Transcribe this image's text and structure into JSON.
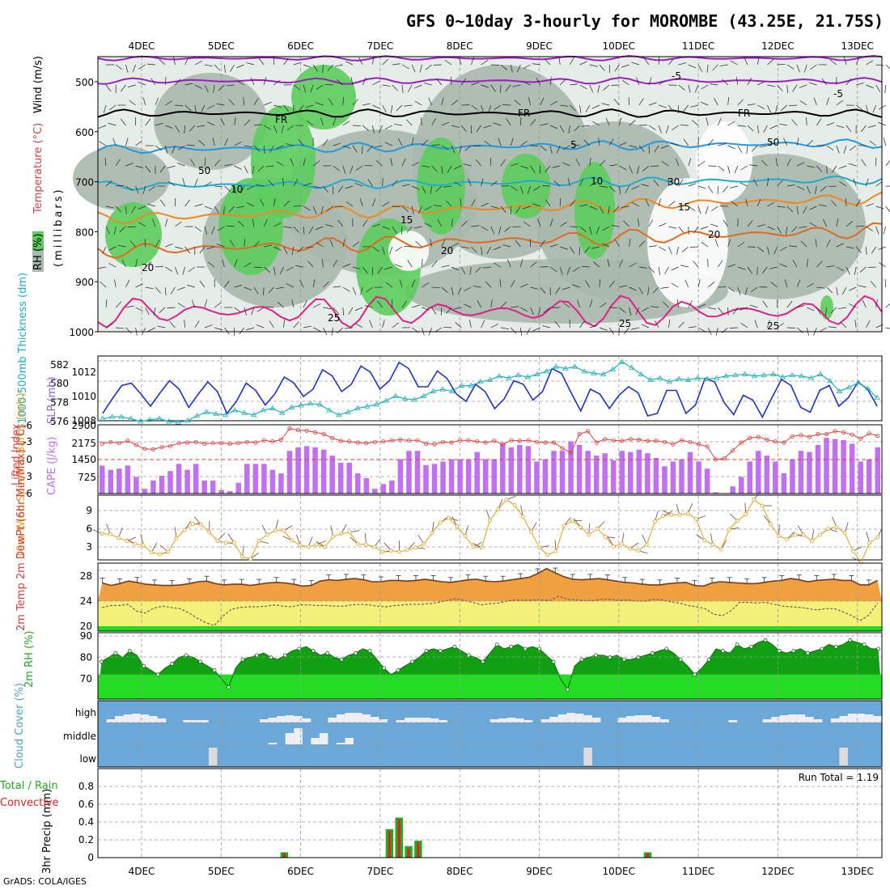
{
  "title": "GFS 0~10day 3-hourly for MOROMBE (43.25E, 21.75S)",
  "credit": "GrADS: COLA/IGES",
  "colors": {
    "rh_light": "#c9d3cc",
    "rh_mid": "#a9b8ad",
    "rh_green": "#5ccd5c",
    "temp_purple": "#9a1fc2",
    "temp_black": "#000000",
    "temp_blue": "#2299dd",
    "temp_cyan": "#22aacc",
    "temp_orange": "#ee8822",
    "temp_red": "#e06a20",
    "temp_magenta": "#dd2288",
    "slp": "#2233bb",
    "thickness": "#22b0b8",
    "cape_bar": "#c070f0",
    "lifted": "#dd4040",
    "wind10": "#e0a020",
    "t2m_fill": "#f0a040",
    "dew_fill": "#f2f27a",
    "rh2m_dark": "#11a011",
    "rh2m_light": "#22dd22",
    "cloud_bg": "#6aa8d8",
    "cloud_fill": "#f0eef5",
    "precip_total": "#22aa22",
    "precip_conv": "#dd2222"
  },
  "chart_data": [
    {
      "type": "heatmap",
      "panel": "upper-air",
      "ylabel_parts": [
        "RH (%)",
        "Temperature (°C)",
        "Wind (m/s)"
      ],
      "ylabel_sub": "(millibars)",
      "x_labels": [
        "4DEC",
        "5DEC",
        "6DEC",
        "7DEC",
        "8DEC",
        "9DEC",
        "10DEC",
        "11DEC",
        "12DEC",
        "13DEC"
      ],
      "y_ticks": [
        500,
        600,
        700,
        800,
        900,
        1000
      ],
      "ylim": [
        1000,
        450
      ],
      "contour_labels": [
        "-5",
        "FR",
        "FR",
        "FR",
        "-5",
        "5",
        "10",
        "10",
        "15",
        "15",
        "20",
        "20",
        "20",
        "25",
        "25",
        "25",
        "50",
        "50",
        "30"
      ]
    },
    {
      "type": "line",
      "panel": "slp-thickness",
      "ylabel_left": "1000-500mb Thickness (dm)",
      "ylabel_right": "SLP (mb)",
      "y_ticks_left": [
        576,
        578,
        580,
        582
      ],
      "y_ticks_right": [
        1008,
        1010,
        1012
      ],
      "series": [
        {
          "name": "SLP",
          "values": [
            1008.6,
            1009.8,
            1010.9,
            1011.1,
            1010.2,
            1009.2,
            1010.3,
            1011.3,
            1010.6,
            1009.1,
            1010.2,
            1011.2,
            1010.4,
            1008.6,
            1009.6,
            1011.1,
            1010.5,
            1009.3,
            1010.2,
            1011.6,
            1011.1,
            1010.0,
            1010.6,
            1012.2,
            1011.7,
            1010.4,
            1011.0,
            1012.5,
            1012.0,
            1010.6,
            1011.3,
            1012.8,
            1012.3,
            1010.8,
            1010.8,
            1012.1,
            1011.5,
            1010.2,
            1009.6,
            1011.0,
            1010.4,
            1009.0,
            1009.8,
            1011.3,
            1011.0,
            1009.7,
            1010.4,
            1012.3,
            1011.9,
            1010.3,
            1008.8,
            1010.6,
            1010.2,
            1009.0,
            1010.1,
            1010.8,
            1010.3,
            1008.4,
            1008.6,
            1010.5,
            1010.5,
            1008.6,
            1009.3,
            1011.5,
            1011.2,
            1009.5,
            1008.5,
            1010.1,
            1009.7,
            1008.3,
            1009.9,
            1011.4,
            1010.9,
            1009.1,
            1008.7,
            1010.5,
            1010.9,
            1009.2,
            1009.9,
            1011.2,
            1010.6,
            1009.2
          ]
        },
        {
          "name": "Thickness",
          "values": [
            576.3,
            576.5,
            576.5,
            576.3,
            576.0,
            576.2,
            576.3,
            576.0,
            575.9,
            576.1,
            576.6,
            577.0,
            576.8,
            576.7,
            577.2,
            576.9,
            576.7,
            577.2,
            577.4,
            576.9,
            577.5,
            577.7,
            577.9,
            577.8,
            577.2,
            576.7,
            577.0,
            577.4,
            577.6,
            577.8,
            578.2,
            578.7,
            578.4,
            578.3,
            578.7,
            579.2,
            579.4,
            579.2,
            579.8,
            579.8,
            580.2,
            580.4,
            580.8,
            580.6,
            580.9,
            580.7,
            581.0,
            581.3,
            581.8,
            581.6,
            581.8,
            581.3,
            581.1,
            581.0,
            581.5,
            582.3,
            581.7,
            581.0,
            580.4,
            580.6,
            580.2,
            580.5,
            580.4,
            580.6,
            580.5,
            580.6,
            580.8,
            580.9,
            581.0,
            580.8,
            580.9,
            581.0,
            580.7,
            580.9,
            580.8,
            580.6,
            581.0,
            580.3,
            579.2,
            579.6,
            580.1,
            579.5,
            578.5
          ]
        }
      ]
    },
    {
      "type": "bar",
      "panel": "cape-lifted",
      "ylabel_left": "Lifted Index",
      "ylabel_right": "CAPE (J/kg)",
      "y_ticks_left": [
        "-6",
        "-3",
        "0",
        "3",
        "6"
      ],
      "y_ticks_right": [
        "2900",
        "2175",
        "1450",
        "725"
      ],
      "series": [
        {
          "name": "CAPE",
          "values": [
            1180,
            1000,
            1050,
            1180,
            700,
            200,
            550,
            750,
            950,
            1250,
            1000,
            1250,
            550,
            550,
            150,
            100,
            450,
            1250,
            1250,
            1250,
            1000,
            850,
            1800,
            1950,
            2000,
            1950,
            1850,
            1600,
            1300,
            1300,
            850,
            650,
            200,
            400,
            550,
            1450,
            1800,
            1800,
            1200,
            1250,
            1350,
            1450,
            1450,
            1450,
            1750,
            1450,
            1450,
            2100,
            1950,
            2050,
            2000,
            1350,
            1450,
            1800,
            1800,
            2200,
            2050,
            1800,
            1600,
            1700,
            1400,
            1800,
            1750,
            1850,
            1700,
            1500,
            1150,
            1350,
            1450,
            1750,
            1350,
            1050,
            50,
            0,
            300,
            700,
            1350,
            1800,
            1600,
            1350,
            850,
            1450,
            1800,
            1750,
            2050,
            2350,
            2300,
            2250,
            2100,
            1350,
            1450,
            1950
          ]
        },
        {
          "name": "Lifted Index",
          "values": [
            -2.8,
            -3.1,
            -2.9,
            -3.3,
            -2.6,
            -1.9,
            -1.8,
            -2.2,
            -2.4,
            -2.9,
            -3.0,
            -3.1,
            -2.8,
            -2.9,
            -2.9,
            -2.8,
            -2.9,
            -3.1,
            -3.0,
            -3.4,
            -3.2,
            -3.5,
            -5.5,
            -5.2,
            -5.1,
            -4.8,
            -4.5,
            -3.8,
            -3.3,
            -3.2,
            -3.0,
            -2.9,
            -3.1,
            -3.2,
            -3.4,
            -3.5,
            -3.4,
            -3.4,
            -2.8,
            -2.7,
            -3.1,
            -3.0,
            -3.4,
            -3.4,
            -3.2,
            -3.0,
            -3.3,
            -2.7,
            -3.4,
            -3.3,
            -3.4,
            -3.1,
            -3.0,
            -3.0,
            -2.0,
            -1.2,
            -4.5,
            -5.0,
            -3.0,
            -3.6,
            -3.4,
            -3.3,
            -3.6,
            -3.5,
            -3.3,
            -3.3,
            -3.1,
            -2.7,
            -3.4,
            -3.1,
            -2.7,
            -2.3,
            0.0,
            -0.2,
            -1.6,
            -3.0,
            -3.8,
            -4.0,
            -3.5,
            -3.2,
            -3.0,
            -4.1,
            -4.3,
            -4.0,
            -4.5,
            -4.5,
            -5.0,
            -4.8,
            -4.4,
            -3.7,
            -4.6,
            -4.2
          ]
        }
      ]
    },
    {
      "type": "line",
      "panel": "wind10m",
      "ylabel": "10m Wind Speed & Barbs (m/s)",
      "y_ticks": [
        3,
        6,
        9
      ],
      "series": [
        {
          "name": "10m Wind",
          "values": [
            5.2,
            5.1,
            4.5,
            4.0,
            3.5,
            3.3,
            2.1,
            1.8,
            2.2,
            4.4,
            5.8,
            6.8,
            6.7,
            5.4,
            4.0,
            3.7,
            3.7,
            1.4,
            1.0,
            4.0,
            5.0,
            5.7,
            5.7,
            4.1,
            3.3,
            3.0,
            3.4,
            3.0,
            4.7,
            5.2,
            5.4,
            3.5,
            3.4,
            3.0,
            2.2,
            2.4,
            2.2,
            2.5,
            2.9,
            3.5,
            5.3,
            7.0,
            7.8,
            6.4,
            4.8,
            3.0,
            2.9,
            7.4,
            9.2,
            10.8,
            9.9,
            8.0,
            5.5,
            2.9,
            1.7,
            2.3,
            6.5,
            7.3,
            6.3,
            5.0,
            6.0,
            4.7,
            3.1,
            3.5,
            2.7,
            2.4,
            3.4,
            7.2,
            8.1,
            8.3,
            8.3,
            8.5,
            7.6,
            4.1,
            3.4,
            2.6,
            5.9,
            7.3,
            8.4,
            10.8,
            9.8,
            6.8,
            4.8,
            4.3,
            5.0,
            5.0,
            4.0,
            5.0,
            6.0,
            6.3,
            5.3,
            2.3,
            0.5,
            3.7,
            4.6
          ]
        }
      ]
    },
    {
      "type": "area",
      "panel": "temp2m",
      "ylabel": "2m Temp 2m DewPt (6hr Min/Max) (°C)",
      "y_ticks": [
        20,
        24,
        28
      ],
      "series": [
        {
          "name": "2m Temp",
          "values": [
            26.9,
            26.5,
            26.8,
            27.2,
            27.0,
            26.7,
            26.6,
            26.5,
            26.5,
            26.6,
            26.8,
            27.1,
            27.2,
            26.8,
            26.6,
            26.7,
            26.7,
            26.5,
            26.7,
            26.9,
            27.0,
            26.9,
            26.7,
            26.4,
            26.5,
            27.2,
            27.4,
            27.3,
            27.5,
            27.6,
            27.4,
            27.1,
            27.1,
            27.3,
            27.3,
            27.2,
            27.3,
            27.5,
            27.3,
            27.1,
            27.0,
            27.2,
            27.4,
            27.5,
            27.2,
            27.1,
            27.2,
            27.4,
            27.6,
            27.8,
            28.4,
            29.2,
            28.5,
            27.9,
            27.5,
            27.4,
            27.5,
            27.6,
            27.4,
            27.2,
            27.0,
            26.9,
            26.7,
            26.6,
            26.6,
            26.8,
            26.9,
            27.0,
            26.5,
            26.4,
            26.9,
            27.1,
            27.0,
            26.9,
            26.8,
            26.8,
            27.0,
            27.2,
            27.3,
            27.6,
            27.4,
            27.1,
            27.3,
            27.4,
            27.5,
            27.3,
            27.3,
            26.6,
            26.6,
            27.3
          ]
        },
        {
          "name": "2m DewPt",
          "values": [
            23.0,
            23.3,
            23.3,
            23.5,
            22.4,
            22.1,
            22.9,
            23.2,
            23.0,
            22.8,
            22.2,
            21.3,
            20.6,
            20.1,
            21.6,
            22.7,
            23.0,
            23.1,
            23.1,
            23.2,
            23.4,
            23.2,
            23.1,
            23.4,
            23.4,
            23.3,
            23.3,
            23.2,
            23.2,
            23.4,
            23.5,
            23.4,
            23.2,
            23.1,
            23.3,
            23.4,
            23.5,
            23.5,
            23.6,
            23.8,
            24.1,
            24.4,
            24.1,
            23.8,
            23.4,
            23.6,
            23.7,
            24.0,
            24.2,
            24.1,
            24.2,
            24.2,
            24.1,
            24.8,
            24.3,
            24.2,
            24.1,
            24.1,
            24.3,
            24.3,
            24.1,
            24.2,
            24.0,
            24.0,
            24.3,
            24.2,
            23.9,
            23.7,
            23.3,
            23.1,
            22.8,
            21.9,
            21.7,
            22.5,
            23.8,
            23.8,
            23.7,
            23.8,
            23.5,
            23.2,
            23.1,
            23.0,
            22.8,
            22.6,
            22.8,
            22.8,
            22.3,
            21.7,
            20.9,
            21.8,
            23.7
          ]
        }
      ]
    },
    {
      "type": "area",
      "panel": "rh2m",
      "ylabel": "2m RH (%)",
      "y_ticks": [
        70,
        80,
        90
      ],
      "series": [
        {
          "name": "2m RH",
          "values": [
            78,
            80,
            82,
            80,
            83,
            81,
            76,
            74,
            72,
            75,
            77,
            80,
            81,
            80,
            78,
            76,
            74,
            70,
            66,
            75,
            79,
            80,
            81,
            82,
            80,
            79,
            81,
            83,
            84,
            85,
            83,
            81,
            82,
            80,
            79,
            81,
            82,
            84,
            83,
            79,
            75,
            72,
            74,
            76,
            78,
            80,
            83,
            84,
            83,
            84,
            85,
            83,
            81,
            80,
            78,
            82,
            86,
            84,
            85,
            86,
            84,
            85,
            84,
            81,
            78,
            70,
            65,
            76,
            79,
            80,
            81,
            81,
            80,
            81,
            79,
            79,
            80,
            81,
            82,
            83,
            84,
            82,
            79,
            76,
            72,
            75,
            79,
            84,
            83,
            82,
            86,
            84,
            85,
            87,
            88,
            86,
            83,
            82,
            83,
            84,
            82,
            83,
            84,
            86,
            85,
            86,
            88,
            87,
            86,
            84,
            84
          ]
        }
      ]
    },
    {
      "type": "bar",
      "panel": "cloud",
      "ylabel": "Cloud Cover (%)",
      "y_ticks": [
        "high",
        "middle",
        "low"
      ]
    },
    {
      "type": "bar",
      "panel": "precip",
      "ylabel": "3hr Precip (mm)",
      "ylabel_left": "Total / Rain",
      "ylabel_left2": "Convective",
      "annotation": "Run Total = 1.19",
      "y_ticks": [
        "0",
        "0.2",
        "0.4",
        "0.6",
        "0.8"
      ],
      "ylim": [
        0,
        1.0
      ],
      "series": [
        {
          "name": "Total",
          "values": [
            0,
            0,
            0,
            0,
            0,
            0,
            0,
            0,
            0,
            0,
            0,
            0,
            0,
            0,
            0,
            0,
            0,
            0,
            0,
            0.06,
            0,
            0,
            0,
            0,
            0,
            0,
            0,
            0,
            0,
            0,
            0.32,
            0.45,
            0.13,
            0.19,
            0,
            0,
            0,
            0,
            0,
            0,
            0,
            0,
            0,
            0,
            0,
            0,
            0,
            0,
            0,
            0,
            0,
            0,
            0,
            0,
            0,
            0,
            0,
            0.06,
            0,
            0,
            0,
            0,
            0,
            0,
            0,
            0,
            0,
            0,
            0,
            0,
            0,
            0,
            0,
            0,
            0,
            0,
            0,
            0,
            0,
            0,
            0,
            0
          ]
        },
        {
          "name": "Convective",
          "values": [
            0,
            0,
            0,
            0,
            0,
            0,
            0,
            0,
            0,
            0,
            0,
            0,
            0,
            0,
            0,
            0,
            0,
            0,
            0,
            0.05,
            0,
            0,
            0,
            0,
            0,
            0,
            0,
            0,
            0,
            0,
            0.3,
            0.43,
            0.1,
            0.17,
            0,
            0,
            0,
            0,
            0,
            0,
            0,
            0,
            0,
            0,
            0,
            0,
            0,
            0,
            0,
            0,
            0,
            0,
            0,
            0,
            0,
            0,
            0,
            0.05,
            0,
            0,
            0,
            0,
            0,
            0,
            0,
            0,
            0,
            0,
            0,
            0,
            0,
            0,
            0,
            0,
            0,
            0,
            0,
            0,
            0,
            0,
            0,
            0
          ]
        }
      ]
    }
  ]
}
